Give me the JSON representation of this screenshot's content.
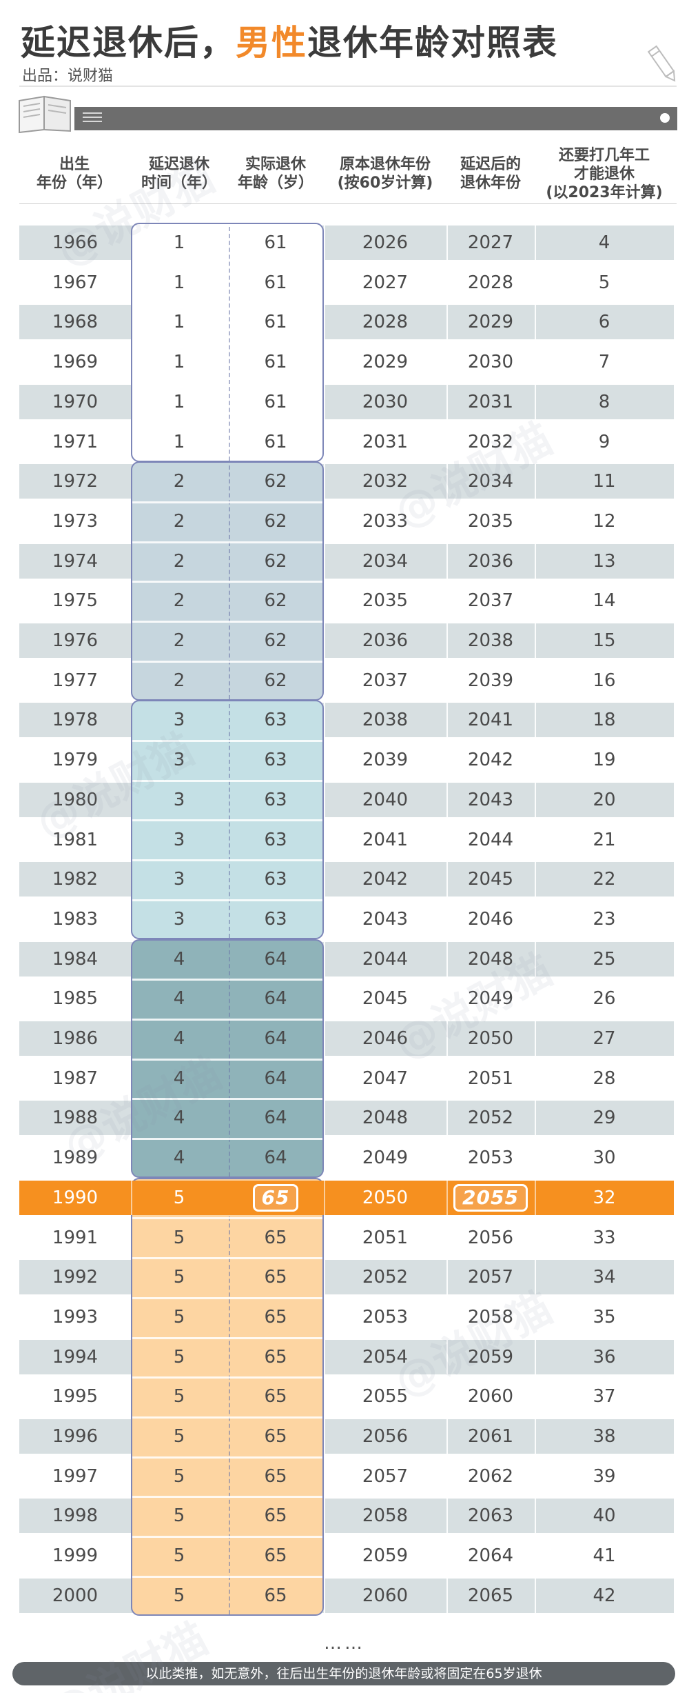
{
  "header": {
    "title_part1": "延迟退休后，",
    "title_highlight": "男性",
    "title_part2": "退休年龄对照表",
    "byline": "出品：说财猫"
  },
  "columns": [
    "出生\n年份（年）",
    "延迟退休\n时间（年）",
    "实际退休\n年龄（岁）",
    "原本退休年份\n(按60岁计算)",
    "延迟后的\n退休年份",
    "还要打几年工\n才能退休\n(以2023年计算)"
  ],
  "rows": [
    [
      "1966",
      "1",
      "61",
      "2026",
      "2027",
      "4"
    ],
    [
      "1967",
      "1",
      "61",
      "2027",
      "2028",
      "5"
    ],
    [
      "1968",
      "1",
      "61",
      "2028",
      "2029",
      "6"
    ],
    [
      "1969",
      "1",
      "61",
      "2029",
      "2030",
      "7"
    ],
    [
      "1970",
      "1",
      "61",
      "2030",
      "2031",
      "8"
    ],
    [
      "1971",
      "1",
      "61",
      "2031",
      "2032",
      "9"
    ],
    [
      "1972",
      "2",
      "62",
      "2032",
      "2034",
      "11"
    ],
    [
      "1973",
      "2",
      "62",
      "2033",
      "2035",
      "12"
    ],
    [
      "1974",
      "2",
      "62",
      "2034",
      "2036",
      "13"
    ],
    [
      "1975",
      "2",
      "62",
      "2035",
      "2037",
      "14"
    ],
    [
      "1976",
      "2",
      "62",
      "2036",
      "2038",
      "15"
    ],
    [
      "1977",
      "2",
      "62",
      "2037",
      "2039",
      "16"
    ],
    [
      "1978",
      "3",
      "63",
      "2038",
      "2041",
      "18"
    ],
    [
      "1979",
      "3",
      "63",
      "2039",
      "2042",
      "19"
    ],
    [
      "1980",
      "3",
      "63",
      "2040",
      "2043",
      "20"
    ],
    [
      "1981",
      "3",
      "63",
      "2041",
      "2044",
      "21"
    ],
    [
      "1982",
      "3",
      "63",
      "2042",
      "2045",
      "22"
    ],
    [
      "1983",
      "3",
      "63",
      "2043",
      "2046",
      "23"
    ],
    [
      "1984",
      "4",
      "64",
      "2044",
      "2048",
      "25"
    ],
    [
      "1985",
      "4",
      "64",
      "2045",
      "2049",
      "26"
    ],
    [
      "1986",
      "4",
      "64",
      "2046",
      "2050",
      "27"
    ],
    [
      "1987",
      "4",
      "64",
      "2047",
      "2051",
      "28"
    ],
    [
      "1988",
      "4",
      "64",
      "2048",
      "2052",
      "29"
    ],
    [
      "1989",
      "4",
      "64",
      "2049",
      "2053",
      "30"
    ],
    [
      "1990",
      "5",
      "65",
      "2050",
      "2055",
      "32"
    ],
    [
      "1991",
      "5",
      "65",
      "2051",
      "2056",
      "33"
    ],
    [
      "1992",
      "5",
      "65",
      "2052",
      "2057",
      "34"
    ],
    [
      "1993",
      "5",
      "65",
      "2053",
      "2058",
      "35"
    ],
    [
      "1994",
      "5",
      "65",
      "2054",
      "2059",
      "36"
    ],
    [
      "1995",
      "5",
      "65",
      "2055",
      "2060",
      "37"
    ],
    [
      "1996",
      "5",
      "65",
      "2056",
      "2061",
      "38"
    ],
    [
      "1997",
      "5",
      "65",
      "2057",
      "2062",
      "39"
    ],
    [
      "1998",
      "5",
      "65",
      "2058",
      "2063",
      "40"
    ],
    [
      "1999",
      "5",
      "65",
      "2059",
      "2064",
      "41"
    ],
    [
      "2000",
      "5",
      "65",
      "2060",
      "2065",
      "42"
    ]
  ],
  "highlight_row_index": 24,
  "groups": [
    {
      "label": "1",
      "start": 0,
      "end": 5,
      "color": "#ffffff",
      "border": "#7d86b8"
    },
    {
      "label": "2",
      "start": 6,
      "end": 11,
      "color": "#c6d6de",
      "border": "#7d86b8"
    },
    {
      "label": "3",
      "start": 12,
      "end": 17,
      "color": "#c4e0e5",
      "border": "#7d86b8"
    },
    {
      "label": "4",
      "start": 18,
      "end": 23,
      "color": "#8fb3b9",
      "border": "#7d86b8"
    },
    {
      "label": "5",
      "start": 24,
      "end": 34,
      "color": "#fdd5a2",
      "border": "#7d86b8"
    }
  ],
  "colors": {
    "accent": "#f2892a",
    "highlight_row": "#f6901f",
    "stripe": "#d7dfe1",
    "footer_bg": "#5f6468"
  },
  "ellipsis": "……",
  "footer": "以此类推，如无意外，往后出生年份的退休年龄或将固定在65岁退休",
  "watermark": "@说财猫",
  "icons": [
    "book-icon",
    "menu-icon",
    "dot-icon",
    "pencil-icon"
  ]
}
